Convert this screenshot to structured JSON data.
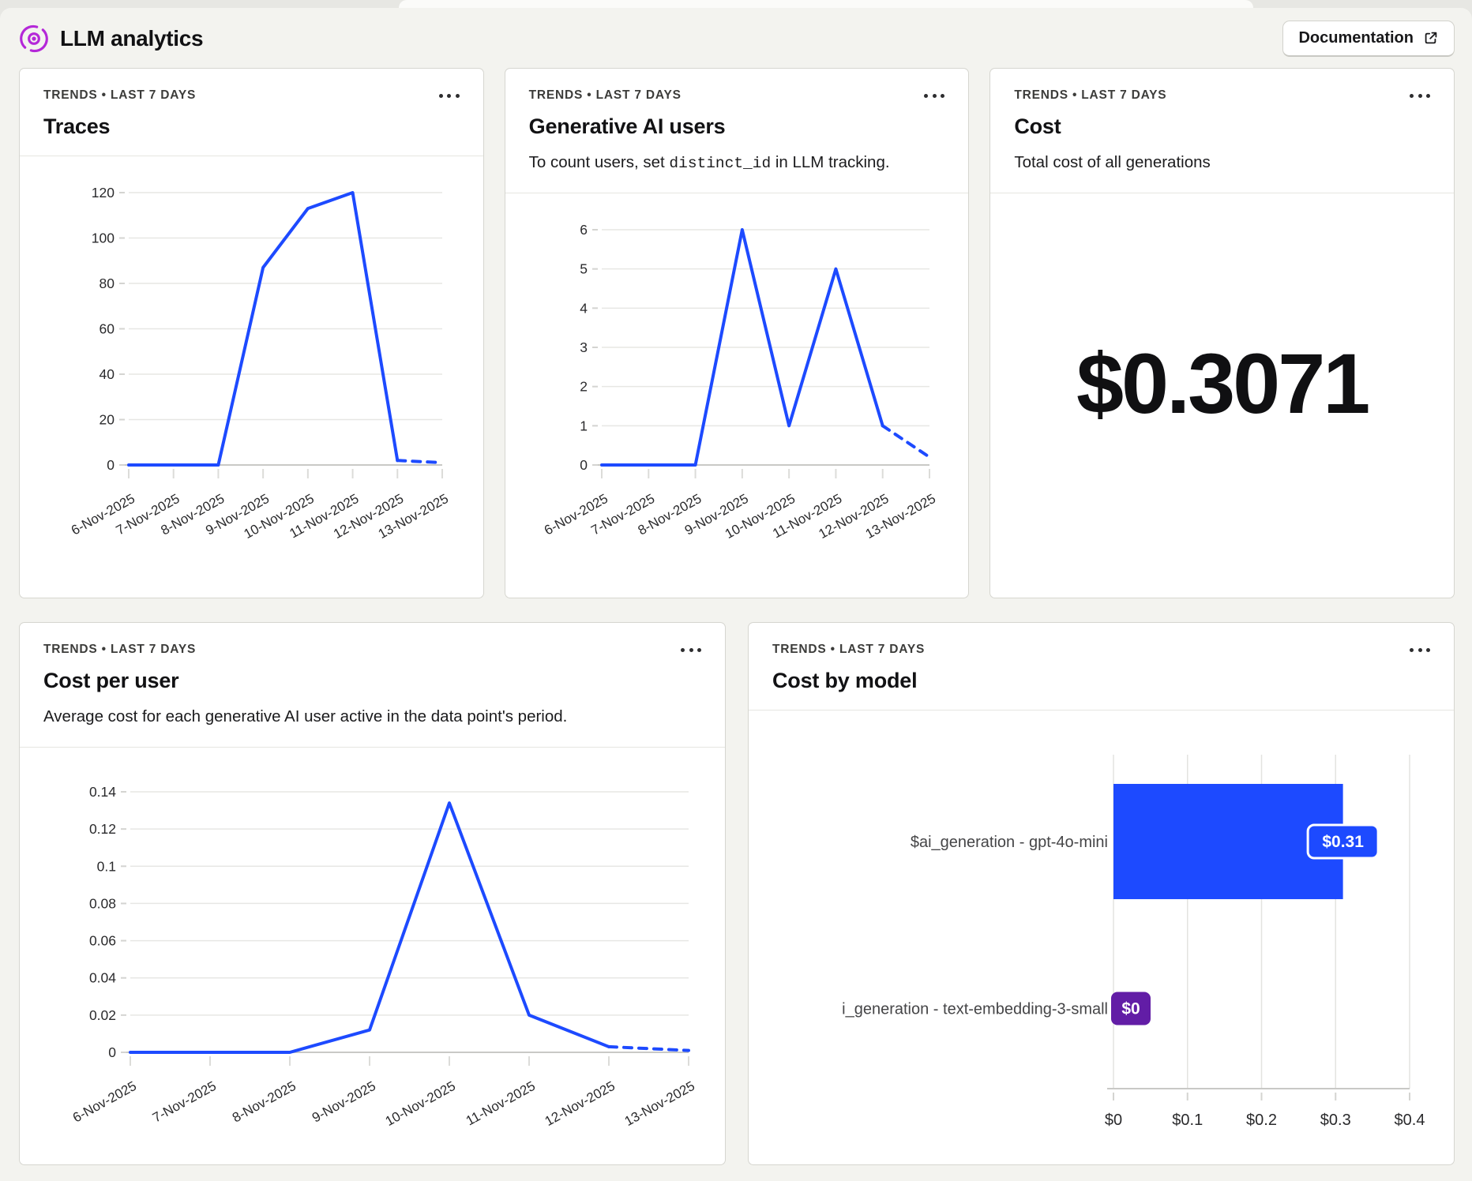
{
  "page": {
    "title": "LLM analytics",
    "documentation_button": "Documentation"
  },
  "colors": {
    "accent_blue": "#1d4aff",
    "accent_purple": "#621da6",
    "brand_icon_purple": "#b428d8",
    "background": "#f3f3ef"
  },
  "cards": [
    {
      "eyebrow": "TRENDS • LAST 7 DAYS",
      "title": "Traces"
    },
    {
      "eyebrow": "TRENDS • LAST 7 DAYS",
      "title": "Generative AI users",
      "desc_pre": "To count users, set ",
      "desc_code": "distinct_id",
      "desc_post": " in LLM tracking."
    },
    {
      "eyebrow": "TRENDS • LAST 7 DAYS",
      "title": "Cost",
      "description": "Total cost of all generations",
      "big_number": "$0.3071"
    },
    {
      "eyebrow": "TRENDS • LAST 7 DAYS",
      "title": "Cost per user",
      "description": "Average cost for each generative AI user active in the data point's period."
    },
    {
      "eyebrow": "TRENDS • LAST 7 DAYS",
      "title": "Cost by model"
    }
  ],
  "chart_data": [
    {
      "id": "traces",
      "type": "line",
      "title": "Traces",
      "x": [
        "6-Nov-2025",
        "7-Nov-2025",
        "8-Nov-2025",
        "9-Nov-2025",
        "10-Nov-2025",
        "11-Nov-2025",
        "12-Nov-2025",
        "13-Nov-2025"
      ],
      "values": [
        0,
        0,
        0,
        87,
        113,
        120,
        2,
        1
      ],
      "ymax": 120,
      "yticks": [
        0,
        20,
        40,
        60,
        80,
        100,
        120
      ],
      "ytick_labels": [
        "0",
        "20",
        "40",
        "60",
        "80",
        "100",
        "120"
      ],
      "dashed_last_segment": true,
      "line_color": "#1d4aff",
      "grid": true,
      "legend": "none"
    },
    {
      "id": "generative-ai-users",
      "type": "line",
      "title": "Generative AI users",
      "x": [
        "6-Nov-2025",
        "7-Nov-2025",
        "8-Nov-2025",
        "9-Nov-2025",
        "10-Nov-2025",
        "11-Nov-2025",
        "12-Nov-2025",
        "13-Nov-2025"
      ],
      "values": [
        0,
        0,
        0,
        6,
        1,
        5,
        1,
        0.2
      ],
      "ymax": 6,
      "yticks": [
        0,
        1,
        2,
        3,
        4,
        5,
        6
      ],
      "ytick_labels": [
        "0",
        "1",
        "2",
        "3",
        "4",
        "5",
        "6"
      ],
      "dashed_last_segment": true,
      "line_color": "#1d4aff",
      "grid": true,
      "legend": "none"
    },
    {
      "id": "cost-per-user",
      "type": "line",
      "title": "Cost per user",
      "x": [
        "6-Nov-2025",
        "7-Nov-2025",
        "8-Nov-2025",
        "9-Nov-2025",
        "10-Nov-2025",
        "11-Nov-2025",
        "12-Nov-2025",
        "13-Nov-2025"
      ],
      "values": [
        0,
        0,
        0,
        0.012,
        0.134,
        0.02,
        0.003,
        0.001
      ],
      "ymax": 0.14,
      "yticks": [
        0,
        0.02,
        0.04,
        0.06,
        0.08,
        0.1,
        0.12,
        0.14
      ],
      "ytick_labels": [
        "0",
        "0.02",
        "0.04",
        "0.06",
        "0.08",
        "0.1",
        "0.12",
        "0.14"
      ],
      "dashed_last_segment": true,
      "line_color": "#1d4aff",
      "grid": true,
      "legend": "none"
    },
    {
      "id": "cost-by-model",
      "type": "bar",
      "title": "Cost by model",
      "orientation": "horizontal",
      "categories": [
        "$ai_generation - gpt-4o-mini",
        "i_generation - text-embedding-3-small"
      ],
      "values": [
        0.31,
        0
      ],
      "value_labels": [
        "$0.31",
        "$0"
      ],
      "bar_colors": [
        "#1d4aff",
        "#621da6"
      ],
      "xmax": 0.4,
      "xticks": [
        0,
        0.1,
        0.2,
        0.3,
        0.4
      ],
      "xtick_labels": [
        "$0",
        "$0.1",
        "$0.2",
        "$0.3",
        "$0.4"
      ],
      "grid": true,
      "legend": "none"
    }
  ]
}
